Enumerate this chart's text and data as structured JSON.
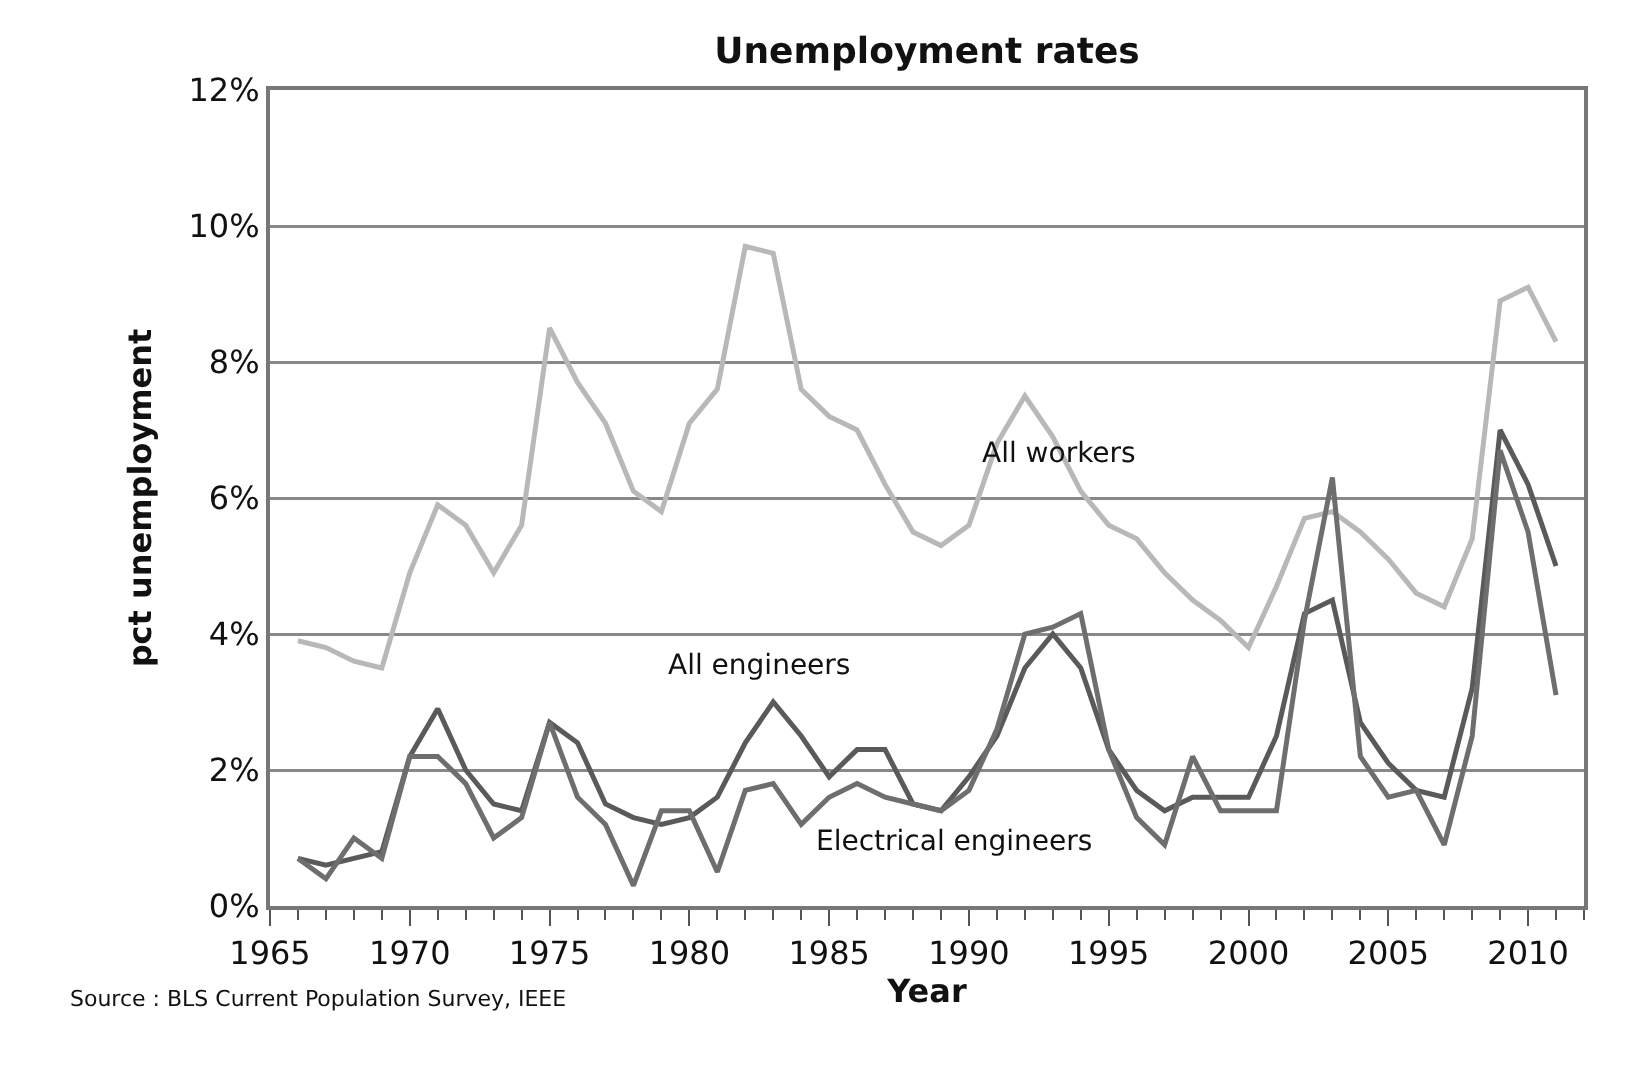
{
  "chart_data": {
    "type": "line",
    "title": "Unemployment rates",
    "xlabel": "Year",
    "ylabel": "pct unemployment",
    "annotations": [
      "Source : BLS Current Population Survey, IEEE"
    ],
    "x": [
      1966,
      1967,
      1968,
      1969,
      1970,
      1971,
      1972,
      1973,
      1974,
      1975,
      1976,
      1977,
      1978,
      1979,
      1980,
      1981,
      1982,
      1983,
      1984,
      1985,
      1986,
      1987,
      1988,
      1989,
      1990,
      1991,
      1992,
      1993,
      1994,
      1995,
      1996,
      1997,
      1998,
      1999,
      2000,
      2001,
      2002,
      2003,
      2004,
      2005,
      2006,
      2007,
      2008,
      2009,
      2010,
      2011
    ],
    "series": [
      {
        "name": "All workers",
        "color": "#b8b8b8",
        "values": [
          3.9,
          3.8,
          3.6,
          3.5,
          4.9,
          5.9,
          5.6,
          4.9,
          5.6,
          8.5,
          7.7,
          7.1,
          6.1,
          5.8,
          7.1,
          7.6,
          9.7,
          9.6,
          7.6,
          7.2,
          7.0,
          6.2,
          5.5,
          5.3,
          5.6,
          6.8,
          7.5,
          6.9,
          6.1,
          5.6,
          5.4,
          4.9,
          4.5,
          4.2,
          3.8,
          4.7,
          5.7,
          5.8,
          5.5,
          5.1,
          4.6,
          4.4,
          5.4,
          8.9,
          9.1,
          8.3
        ]
      },
      {
        "name": "All engineers",
        "color": "#5a5a5a",
        "values": [
          0.7,
          0.6,
          0.7,
          0.8,
          2.2,
          2.9,
          2.0,
          1.5,
          1.4,
          2.7,
          2.4,
          1.5,
          1.3,
          1.2,
          1.3,
          1.6,
          2.4,
          3.0,
          2.5,
          1.9,
          2.3,
          2.3,
          1.5,
          1.4,
          1.9,
          2.5,
          3.5,
          4.0,
          3.5,
          2.3,
          1.7,
          1.4,
          1.6,
          1.6,
          1.6,
          2.5,
          4.3,
          4.5,
          2.7,
          2.1,
          1.7,
          1.6,
          3.2,
          7.0,
          6.2,
          5.0
        ]
      },
      {
        "name": "Electrical engineers",
        "color": "#6e6e6e",
        "values": [
          0.7,
          0.4,
          1.0,
          0.7,
          2.2,
          2.2,
          1.8,
          1.0,
          1.3,
          2.7,
          1.6,
          1.2,
          0.3,
          1.4,
          1.4,
          0.5,
          1.7,
          1.8,
          1.2,
          1.6,
          1.8,
          1.6,
          1.5,
          1.4,
          1.7,
          2.6,
          4.0,
          4.1,
          4.3,
          2.3,
          1.3,
          0.9,
          2.2,
          1.4,
          1.4,
          1.4,
          4.2,
          6.3,
          2.2,
          1.6,
          1.7,
          0.9,
          2.5,
          6.7,
          5.5,
          3.1
        ]
      }
    ],
    "xlim": [
      1965,
      2012
    ],
    "xticks": [
      1965,
      1970,
      1975,
      1980,
      1985,
      1990,
      1995,
      2000,
      2005,
      2010
    ],
    "ylim": [
      0,
      12
    ],
    "yticks": [
      {
        "value": 0,
        "label": "0%"
      },
      {
        "value": 2,
        "label": "2%"
      },
      {
        "value": 4,
        "label": "4%"
      },
      {
        "value": 6,
        "label": "6%"
      },
      {
        "value": 8,
        "label": "8%"
      },
      {
        "value": 10,
        "label": "10%"
      },
      {
        "value": 12,
        "label": "12%"
      }
    ],
    "grid": "y",
    "legend": false,
    "marker": "none",
    "line_style": "solid"
  }
}
